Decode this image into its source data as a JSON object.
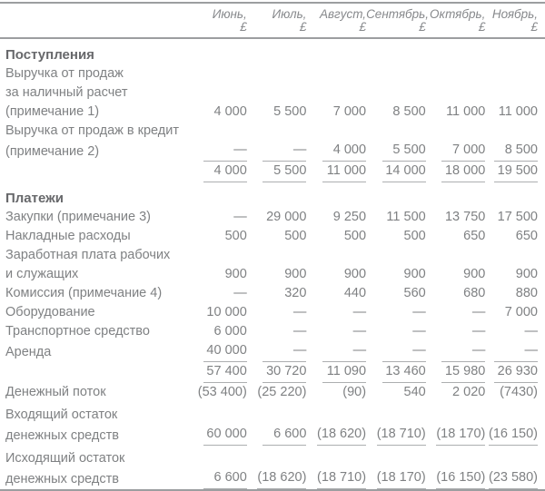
{
  "table": {
    "columns": [
      {
        "month": "Июнь,",
        "currency": "£"
      },
      {
        "month": "Июль,",
        "currency": "£"
      },
      {
        "month": "Август,",
        "currency": "£"
      },
      {
        "month": "Сентябрь,",
        "currency": "£"
      },
      {
        "month": "Октябрь,",
        "currency": "£"
      },
      {
        "month": "Ноябрь,",
        "currency": "£"
      }
    ],
    "rows": [
      {
        "type": "section",
        "label": "Поступления"
      },
      {
        "type": "data",
        "label": "Выручка от продаж",
        "values": [
          "",
          "",
          "",
          "",
          "",
          ""
        ]
      },
      {
        "type": "data",
        "label": "за наличный расчет",
        "values": [
          "",
          "",
          "",
          "",
          "",
          ""
        ]
      },
      {
        "type": "data",
        "label": "(примечание 1)",
        "values": [
          "4 000",
          "5 500",
          "7 000",
          "8 500",
          "11 000",
          "11 000"
        ]
      },
      {
        "type": "data",
        "label": "Выручка от продаж в кредит",
        "values": [
          "",
          "",
          "",
          "",
          "",
          ""
        ]
      },
      {
        "type": "data",
        "label": "(примечание 2)",
        "values": [
          "—",
          "—",
          "4 000",
          "5 500",
          "7 000",
          "8 500"
        ],
        "underline": true
      },
      {
        "type": "data",
        "label": "",
        "values": [
          "4 000",
          "5 500",
          "11 000",
          "14 000",
          "18 000",
          "19 500"
        ],
        "underline": true
      },
      {
        "type": "section",
        "label": "Платежи"
      },
      {
        "type": "data",
        "label": "Закупки (примечание 3)",
        "values": [
          "—",
          "29 000",
          "9 250",
          "11 500",
          "13 750",
          "17 500"
        ]
      },
      {
        "type": "data",
        "label": "Накладные расходы",
        "values": [
          "500",
          "500",
          "500",
          "500",
          "650",
          "650"
        ]
      },
      {
        "type": "data",
        "label": "Заработная плата рабочих",
        "values": [
          "",
          "",
          "",
          "",
          "",
          ""
        ]
      },
      {
        "type": "data",
        "label": "и служащих",
        "values": [
          "900",
          "900",
          "900",
          "900",
          "900",
          "900"
        ]
      },
      {
        "type": "data",
        "label": "Комиссия (примечание 4)",
        "values": [
          "—",
          "320",
          "440",
          "560",
          "680",
          "880"
        ]
      },
      {
        "type": "data",
        "label": "Оборудование",
        "values": [
          "10 000",
          "—",
          "—",
          "—",
          "—",
          "7 000"
        ]
      },
      {
        "type": "data",
        "label": "Транспортное средство",
        "values": [
          "6 000",
          "—",
          "—",
          "—",
          "—",
          "—"
        ]
      },
      {
        "type": "data",
        "label": "Аренда",
        "values": [
          "40 000",
          "—",
          "—",
          "—",
          "—",
          "—"
        ],
        "underline": true
      },
      {
        "type": "data",
        "label": "",
        "values": [
          "57 400",
          "30 720",
          "11 090",
          "13 460",
          "15 980",
          "26 930"
        ],
        "underline": true
      },
      {
        "type": "data",
        "label": "Денежный поток",
        "values": [
          "(53 400)",
          "(25 220)",
          "(90)",
          "540",
          "2 020",
          "(7430)"
        ]
      },
      {
        "type": "data",
        "label": "Входящий остаток",
        "values": [
          "",
          "",
          "",
          "",
          "",
          ""
        ],
        "space_above": true
      },
      {
        "type": "data",
        "label": "денежных средств",
        "values": [
          "60 000",
          "6 600",
          "(18 620)",
          "(18 710)",
          "(18 170)",
          "(16 150)"
        ],
        "underline": true
      },
      {
        "type": "data",
        "label": "Исходящий остаток",
        "values": [
          "",
          "",
          "",
          "",
          "",
          ""
        ],
        "space_above": true
      },
      {
        "type": "data",
        "label": "денежных средств",
        "values": [
          "6 600",
          "(18 620)",
          "(18 710)",
          "(18 170)",
          "(16 150)",
          "(23 580)"
        ],
        "underline": true
      }
    ],
    "colors": {
      "text": "#7f8183",
      "section_text": "#67686b",
      "header_text": "#87898c",
      "rule": "#9c9ea0",
      "value_underline": "#acaeb0",
      "background": "#ffffff"
    }
  }
}
